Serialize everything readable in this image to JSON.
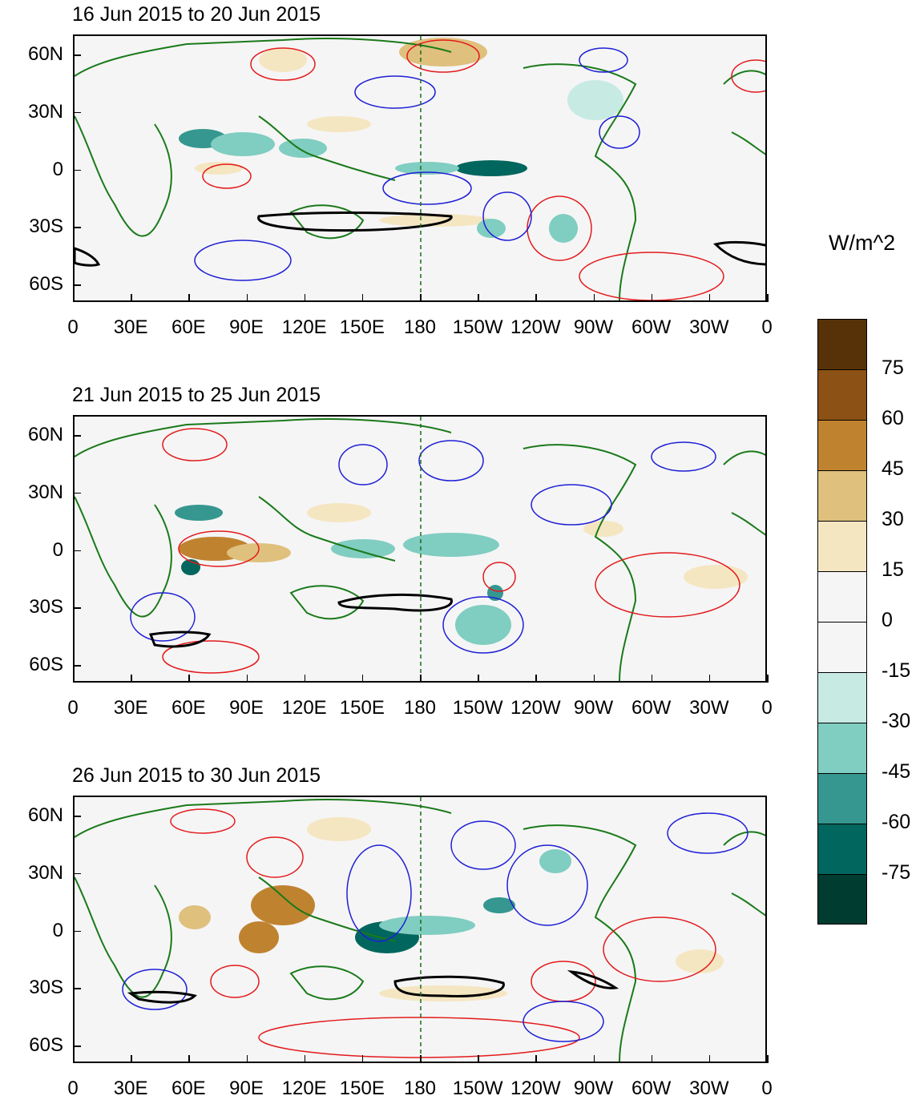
{
  "panels": [
    {
      "title": "16 Jun 2015 to 20 Jun 2015"
    },
    {
      "title": "21 Jun 2015 to 25 Jun 2015"
    },
    {
      "title": "26 Jun 2015 to 30 Jun 2015"
    }
  ],
  "axes": {
    "lat_labels": [
      "60N",
      "30N",
      "0",
      "30S",
      "60S"
    ],
    "lon_labels": [
      "0",
      "30E",
      "60E",
      "90E",
      "120E",
      "150E",
      "180",
      "150W",
      "120W",
      "90W",
      "60W",
      "30W",
      "0"
    ]
  },
  "colorbar": {
    "units": "W/m^2",
    "labels": [
      "75",
      "60",
      "45",
      "30",
      "15",
      "0",
      "-15",
      "-30",
      "-45",
      "-60",
      "-75"
    ],
    "colors": [
      "#573209",
      "#8c5114",
      "#bf8330",
      "#dfc07d",
      "#f5e6c2",
      "#f5f5f5",
      "#f5f5f5",
      "#c7eae3",
      "#80cdc1",
      "#35978f",
      "#01665e",
      "#003c30"
    ]
  },
  "map_colors": {
    "coast": "#1a7a1a",
    "positive_contour": "#e31a1c",
    "negative_contour": "#1f1fd6",
    "significance": "#000000",
    "dateline": "#1a6b1a"
  }
}
